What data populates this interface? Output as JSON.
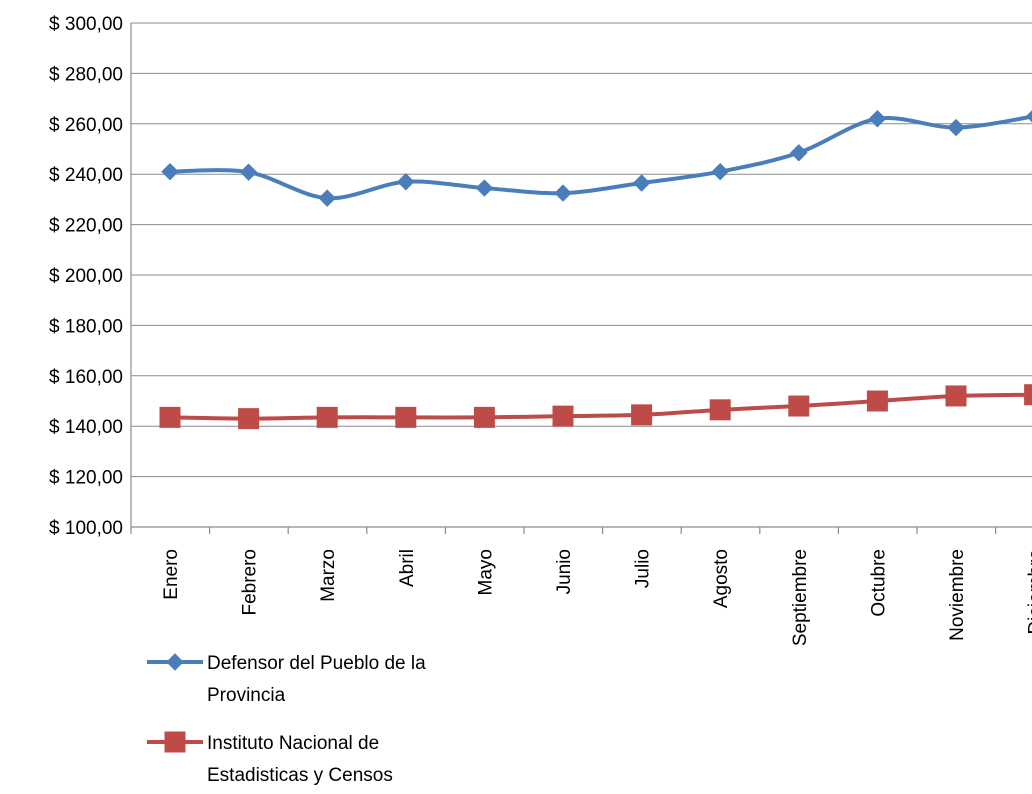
{
  "chart_data": {
    "type": "line",
    "title": "",
    "xlabel": "",
    "ylabel": "",
    "categories": [
      "Enero",
      "Febrero",
      "Marzo",
      "Abril",
      "Mayo",
      "Junio",
      "Julio",
      "Agosto",
      "Septiembre",
      "Octubre",
      "Noviembre",
      "Diciembre"
    ],
    "y_ticks": [
      "$ 100,00",
      "$ 120,00",
      "$ 140,00",
      "$ 160,00",
      "$ 180,00",
      "$ 200,00",
      "$ 220,00",
      "$ 240,00",
      "$ 260,00",
      "$ 280,00",
      "$ 300,00"
    ],
    "ylim": [
      100,
      300
    ],
    "grid": true,
    "legend_position": "bottom-left",
    "series": [
      {
        "name": "Defensor del Pueblo de la Provincia",
        "legend_lines": [
          "Defensor del Pueblo de la",
          "Provincia"
        ],
        "color": "#4a7ebb",
        "marker": "diamond",
        "values": [
          241,
          240.8,
          230.5,
          237,
          234.5,
          232.5,
          236.5,
          241,
          248.5,
          262,
          258.5,
          263
        ]
      },
      {
        "name": "Instituto Nacional de Estadisticas y Censos",
        "legend_lines": [
          "Instituto Nacional de",
          "Estadisticas y Censos"
        ],
        "color": "#be4b48",
        "marker": "square",
        "values": [
          143.5,
          143,
          143.5,
          143.5,
          143.5,
          144,
          144.5,
          146.5,
          148,
          150,
          152,
          152.5
        ]
      }
    ]
  }
}
